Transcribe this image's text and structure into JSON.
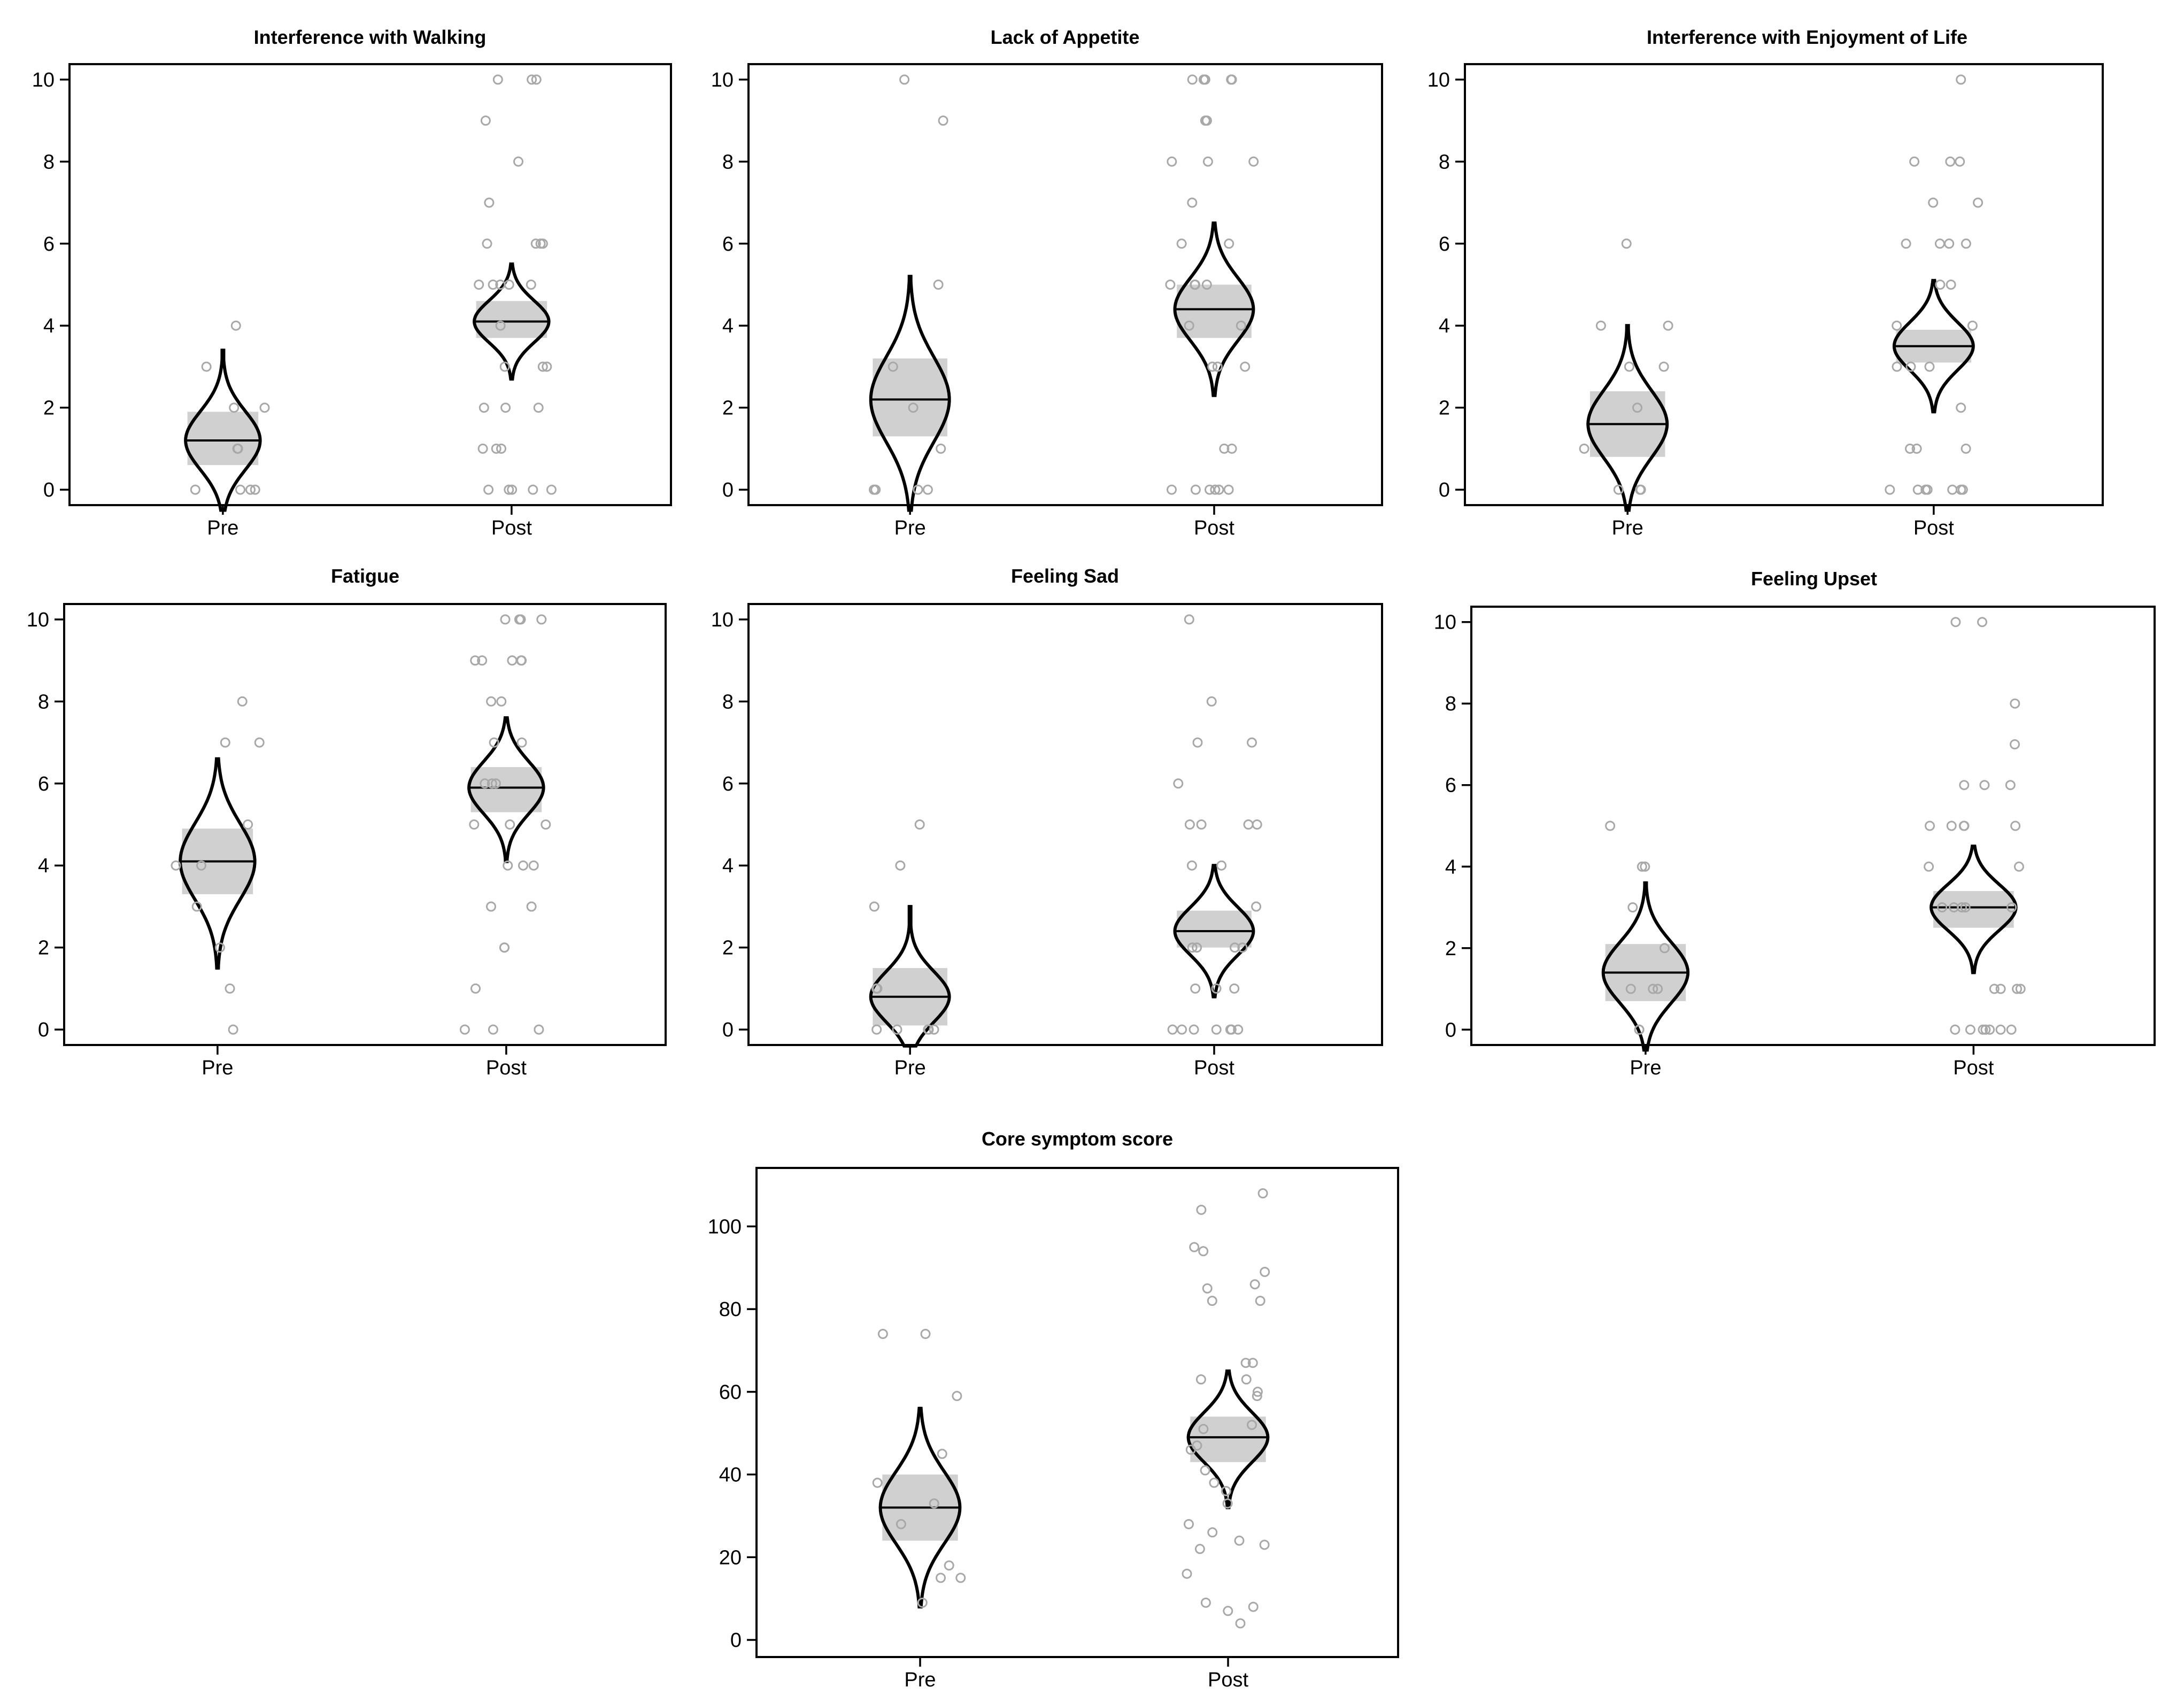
{
  "chart_data": [
    {
      "type": "violin",
      "title": "Interference with Walking",
      "categories": [
        "Pre",
        "Post"
      ],
      "ylim": [
        0,
        10
      ],
      "yticks": [
        0,
        2,
        4,
        6,
        8,
        10
      ],
      "groups": [
        {
          "category": "Pre",
          "center": 1.2,
          "ci": [
            0.6,
            1.9
          ],
          "range": [
            -0.5,
            3.4
          ],
          "points": [
            4,
            3,
            2,
            2,
            1,
            1,
            0,
            0,
            0,
            0
          ]
        },
        {
          "category": "Post",
          "center": 4.1,
          "ci": [
            3.7,
            4.6
          ],
          "range": [
            2.7,
            5.5
          ],
          "points": [
            10,
            10,
            10,
            9,
            8,
            7,
            6,
            6,
            6,
            6,
            5,
            5,
            5,
            5,
            5,
            4,
            3,
            3,
            3,
            2,
            2,
            2,
            1,
            1,
            1,
            0,
            0,
            0,
            0,
            0
          ]
        }
      ]
    },
    {
      "type": "violin",
      "title": "Lack of Appetite",
      "categories": [
        "Pre",
        "Post"
      ],
      "ylim": [
        0,
        10
      ],
      "yticks": [
        0,
        2,
        4,
        6,
        8,
        10
      ],
      "groups": [
        {
          "category": "Pre",
          "center": 2.2,
          "ci": [
            1.3,
            3.2
          ],
          "range": [
            -0.5,
            5.2
          ],
          "points": [
            10,
            9,
            5,
            3,
            2,
            1,
            0,
            0,
            0,
            0
          ]
        },
        {
          "category": "Post",
          "center": 4.4,
          "ci": [
            3.7,
            5.0
          ],
          "range": [
            2.3,
            6.5
          ],
          "points": [
            10,
            10,
            10,
            10,
            10,
            9,
            9,
            8,
            8,
            8,
            7,
            6,
            6,
            5,
            5,
            5,
            5,
            4,
            4,
            3,
            3,
            3,
            1,
            1,
            0,
            0,
            0,
            0,
            0,
            0
          ]
        }
      ]
    },
    {
      "type": "violin",
      "title": "Interference with Enjoyment of Life",
      "categories": [
        "Pre",
        "Post"
      ],
      "ylim": [
        0,
        10
      ],
      "yticks": [
        0,
        2,
        4,
        6,
        8,
        10
      ],
      "groups": [
        {
          "category": "Pre",
          "center": 1.6,
          "ci": [
            0.8,
            2.4
          ],
          "range": [
            -0.5,
            4.0
          ],
          "points": [
            6,
            4,
            4,
            3,
            3,
            2,
            1,
            0,
            0,
            0
          ]
        },
        {
          "category": "Post",
          "center": 3.5,
          "ci": [
            3.1,
            3.9
          ],
          "range": [
            1.9,
            5.1
          ],
          "points": [
            10,
            8,
            8,
            8,
            7,
            7,
            6,
            6,
            6,
            6,
            5,
            5,
            4,
            4,
            3,
            3,
            3,
            2,
            1,
            1,
            1,
            0,
            0,
            0,
            0,
            0,
            0,
            0
          ]
        }
      ]
    },
    {
      "type": "violin",
      "title": "Fatigue",
      "categories": [
        "Pre",
        "Post"
      ],
      "ylim": [
        0,
        10
      ],
      "yticks": [
        0,
        2,
        4,
        6,
        8,
        10
      ],
      "groups": [
        {
          "category": "Pre",
          "center": 4.1,
          "ci": [
            3.3,
            4.9
          ],
          "range": [
            1.5,
            6.6
          ],
          "points": [
            8,
            7,
            7,
            5,
            4,
            4,
            3,
            2,
            1,
            0
          ]
        },
        {
          "category": "Post",
          "center": 5.9,
          "ci": [
            5.3,
            6.4
          ],
          "range": [
            4.1,
            7.6
          ],
          "points": [
            10,
            10,
            10,
            10,
            9,
            9,
            9,
            9,
            9,
            8,
            8,
            7,
            7,
            6,
            6,
            6,
            5,
            5,
            5,
            4,
            4,
            4,
            3,
            3,
            2,
            2,
            1,
            0,
            0,
            0
          ]
        }
      ]
    },
    {
      "type": "violin",
      "title": "Feeling Sad",
      "categories": [
        "Pre",
        "Post"
      ],
      "ylim": [
        0,
        10
      ],
      "yticks": [
        0,
        2,
        4,
        6,
        8,
        10
      ],
      "groups": [
        {
          "category": "Pre",
          "center": 0.8,
          "ci": [
            0.1,
            1.5
          ],
          "range": [
            -0.4,
            3.0
          ],
          "points": [
            5,
            4,
            3,
            1,
            1,
            0,
            0,
            0,
            0,
            0
          ]
        },
        {
          "category": "Post",
          "center": 2.4,
          "ci": [
            2.0,
            2.9
          ],
          "range": [
            0.8,
            4.0
          ],
          "points": [
            10,
            8,
            7,
            7,
            6,
            5,
            5,
            5,
            5,
            4,
            4,
            3,
            2,
            2,
            2,
            2,
            1,
            1,
            1,
            0,
            0,
            0,
            0,
            0,
            0,
            0
          ]
        }
      ]
    },
    {
      "type": "violin",
      "title": "Feeling Upset",
      "categories": [
        "Pre",
        "Post"
      ],
      "ylim": [
        0,
        10
      ],
      "yticks": [
        0,
        2,
        4,
        6,
        8,
        10
      ],
      "groups": [
        {
          "category": "Pre",
          "center": 1.4,
          "ci": [
            0.7,
            2.1
          ],
          "range": [
            -0.5,
            3.6
          ],
          "points": [
            5,
            4,
            4,
            3,
            2,
            1,
            1,
            1,
            0,
            0
          ]
        },
        {
          "category": "Post",
          "center": 3.0,
          "ci": [
            2.5,
            3.4
          ],
          "range": [
            1.4,
            4.5
          ],
          "points": [
            10,
            10,
            8,
            7,
            6,
            6,
            6,
            5,
            5,
            5,
            5,
            5,
            4,
            4,
            3,
            3,
            3,
            3,
            3,
            1,
            1,
            1,
            1,
            0,
            0,
            0,
            0,
            0,
            0,
            0
          ]
        }
      ]
    },
    {
      "type": "violin",
      "title": "Core symptom score",
      "categories": [
        "Pre",
        "Post"
      ],
      "ylim": [
        0,
        110
      ],
      "yticks": [
        0,
        20,
        40,
        60,
        80,
        100
      ],
      "groups": [
        {
          "category": "Pre",
          "center": 32,
          "ci": [
            24,
            40
          ],
          "range": [
            8,
            56
          ],
          "points": [
            74,
            74,
            59,
            45,
            38,
            33,
            28,
            18,
            15,
            15,
            9
          ]
        },
        {
          "category": "Post",
          "center": 49,
          "ci": [
            43,
            54
          ],
          "range": [
            32,
            65
          ],
          "points": [
            108,
            104,
            95,
            94,
            89,
            86,
            85,
            82,
            82,
            67,
            67,
            63,
            63,
            60,
            59,
            52,
            51,
            47,
            46,
            41,
            38,
            36,
            33,
            28,
            26,
            24,
            23,
            22,
            16,
            9,
            8,
            7,
            4
          ]
        }
      ]
    }
  ]
}
